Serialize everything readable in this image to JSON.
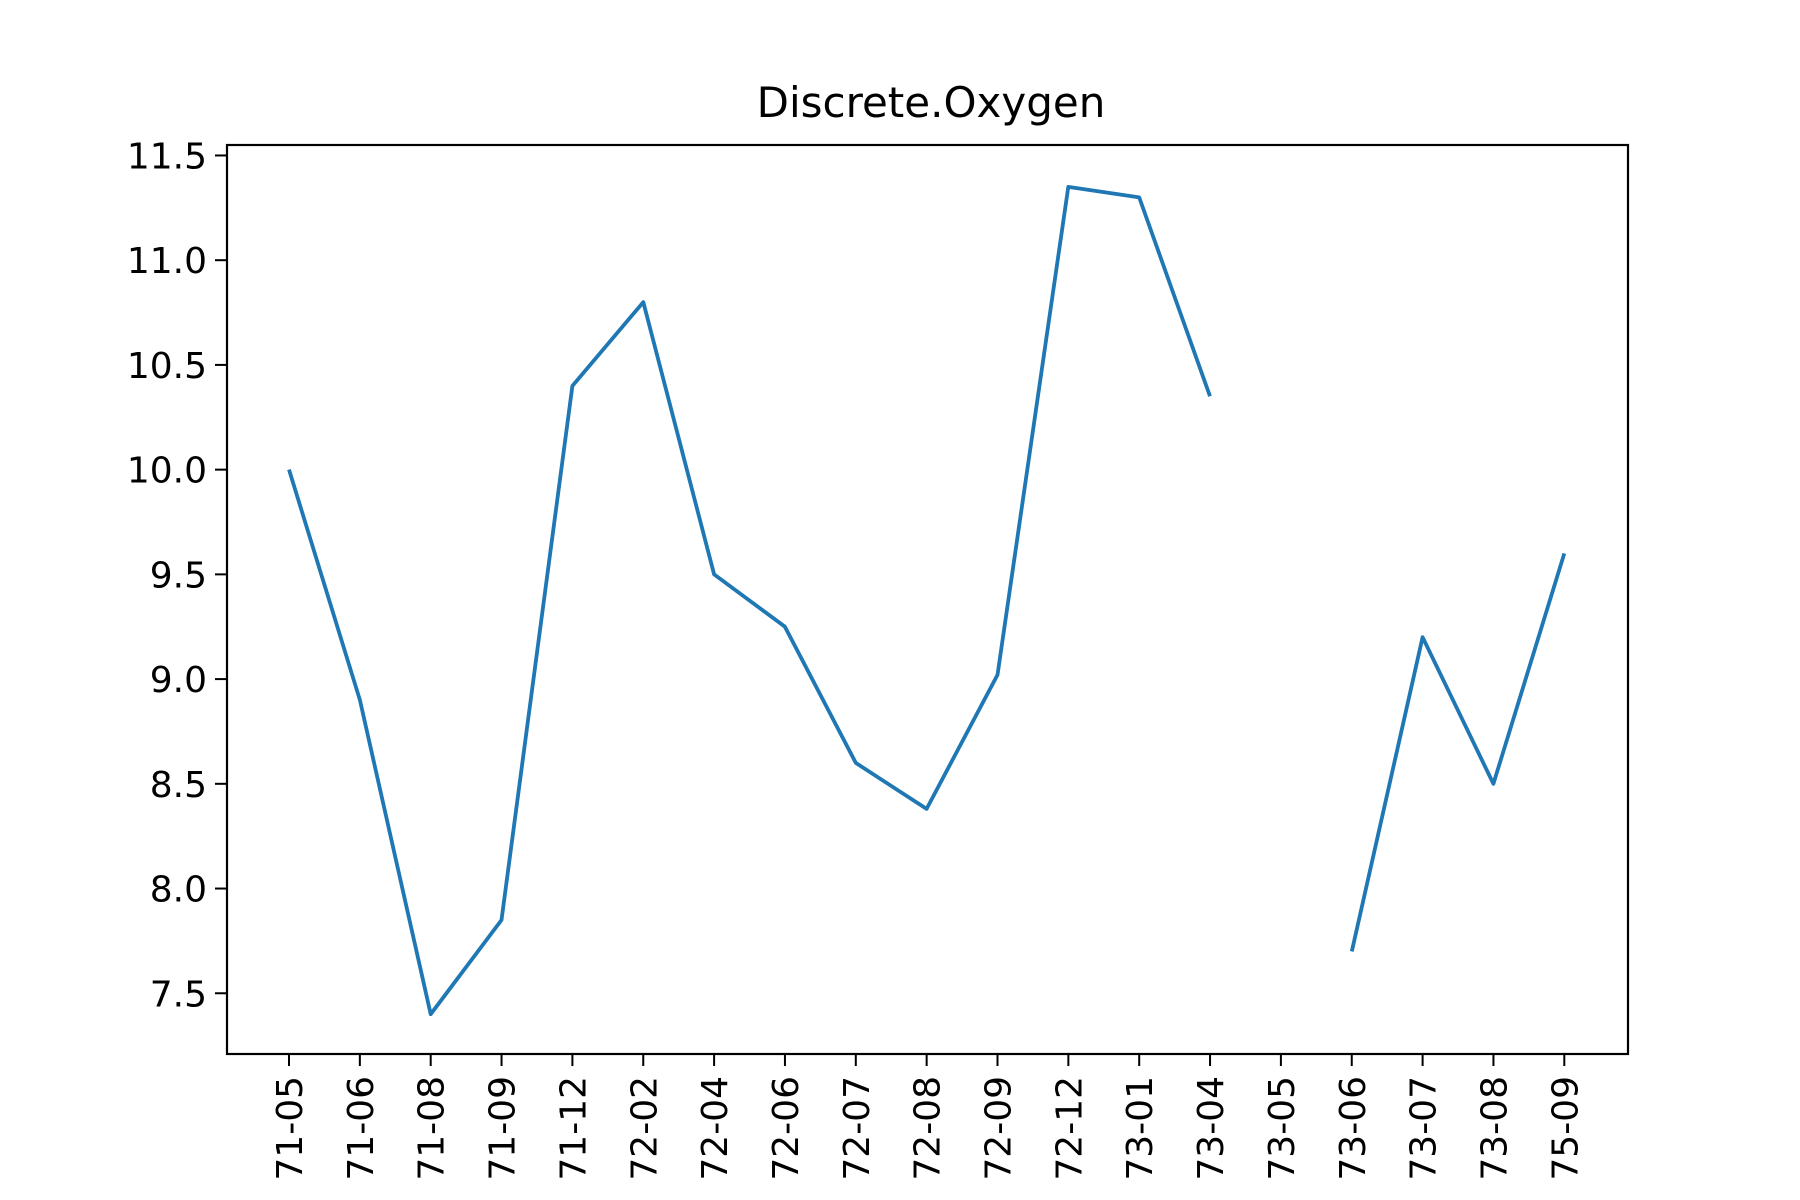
{
  "chart_data": {
    "type": "line",
    "title": "Discrete.Oxygen",
    "xlabel": "",
    "ylabel": "",
    "categories": [
      "1971-05",
      "1971-06",
      "1971-08",
      "1971-09",
      "1971-12",
      "1972-02",
      "1972-04",
      "1972-06",
      "1972-07",
      "1972-08",
      "1972-09",
      "1972-12",
      "1973-01",
      "1973-04",
      "1973-05",
      "1973-06",
      "1973-07",
      "1973-08",
      "1975-09"
    ],
    "x_tick_labels": [
      "71-05",
      "71-06",
      "71-08",
      "71-09",
      "71-12",
      "72-02",
      "72-04",
      "72-06",
      "72-07",
      "72-08",
      "72-09",
      "72-12",
      "73-01",
      "73-04",
      "73-05",
      "73-06",
      "73-07",
      "73-08",
      "75-09"
    ],
    "series": [
      {
        "values": [
          10.0,
          8.9,
          7.4,
          7.85,
          10.4,
          10.8,
          9.5,
          9.25,
          8.6,
          8.38,
          9.02,
          11.35,
          11.3,
          10.35,
          null,
          7.7,
          9.2,
          8.5,
          9.6
        ]
      }
    ],
    "ylim": [
      7.21,
      11.55
    ],
    "y_ticks": [
      7.5,
      8.0,
      8.5,
      9.0,
      9.5,
      10.0,
      10.5,
      11.0,
      11.5
    ],
    "y_tick_labels": [
      "7.5",
      "8.0",
      "8.5",
      "9.0",
      "9.5",
      "10.0",
      "10.5",
      "11.0",
      "11.5"
    ],
    "grid": false,
    "colors": {
      "series": "#1f77b4",
      "axes": "#000000",
      "background": "#ffffff"
    }
  }
}
